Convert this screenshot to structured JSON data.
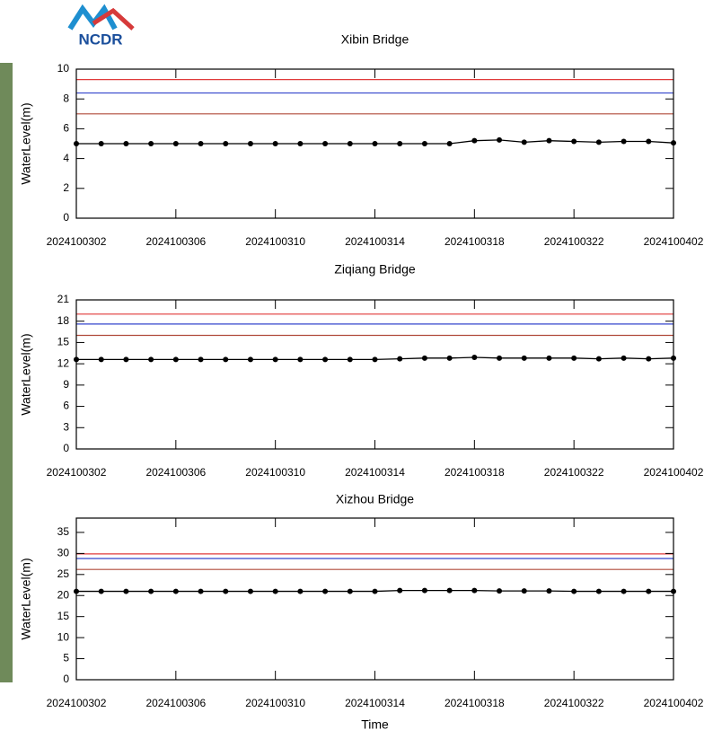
{
  "logo": "NCDR",
  "chart_data": [
    {
      "type": "line",
      "title": "Xibin Bridge",
      "y_label": "WaterLevel(m)",
      "categories": [
        "2024100302",
        null,
        null,
        null,
        "2024100306",
        null,
        null,
        null,
        "2024100310",
        null,
        null,
        null,
        "2024100314",
        null,
        null,
        null,
        "2024100318",
        null,
        null,
        null,
        "2024100322",
        null,
        null,
        null,
        "2024100402"
      ],
      "series": [
        {
          "color": "#000000",
          "values": [
            5.0,
            5.0,
            5.0,
            5.0,
            5.0,
            5.0,
            5.0,
            5.0,
            5.0,
            5.0,
            5.0,
            5.0,
            5.0,
            5.0,
            5.0,
            5.0,
            5.2,
            5.25,
            5.1,
            5.2,
            5.15,
            5.1,
            5.15,
            5.15,
            5.05
          ]
        }
      ],
      "reference_lines": [
        {
          "value": 9.3,
          "color": "#e03a3a"
        },
        {
          "value": 8.4,
          "color": "#3344cc"
        },
        {
          "value": 7.0,
          "color": "#b04a3a"
        }
      ],
      "ylim": [
        0,
        10
      ],
      "yticks": [
        0,
        2,
        4,
        6,
        8,
        10
      ]
    },
    {
      "type": "line",
      "title": "Ziqiang Bridge",
      "y_label": "WaterLevel(m)",
      "categories": [
        "2024100302",
        null,
        null,
        null,
        "2024100306",
        null,
        null,
        null,
        "2024100310",
        null,
        null,
        null,
        "2024100314",
        null,
        null,
        null,
        "2024100318",
        null,
        null,
        null,
        "2024100322",
        null,
        null,
        null,
        "2024100402"
      ],
      "series": [
        {
          "color": "#000000",
          "values": [
            12.6,
            12.6,
            12.6,
            12.6,
            12.6,
            12.6,
            12.6,
            12.6,
            12.6,
            12.6,
            12.6,
            12.6,
            12.6,
            12.7,
            12.8,
            12.8,
            12.9,
            12.8,
            12.8,
            12.8,
            12.8,
            12.7,
            12.8,
            12.7,
            12.8
          ]
        }
      ],
      "reference_lines": [
        {
          "value": 19.0,
          "color": "#e03a3a"
        },
        {
          "value": 17.6,
          "color": "#3344cc"
        },
        {
          "value": 16.0,
          "color": "#b04a3a"
        }
      ],
      "ylim": [
        0,
        21
      ],
      "yticks": [
        0,
        3,
        6,
        9,
        12,
        15,
        18,
        21
      ]
    },
    {
      "type": "line",
      "title": "Xizhou Bridge",
      "y_label": "WaterLevel(m)",
      "x_label": "Time",
      "categories": [
        "2024100302",
        null,
        null,
        null,
        "2024100306",
        null,
        null,
        null,
        "2024100310",
        null,
        null,
        null,
        "2024100314",
        null,
        null,
        null,
        "2024100318",
        null,
        null,
        null,
        "2024100322",
        null,
        null,
        null,
        "2024100402"
      ],
      "series": [
        {
          "color": "#000000",
          "values": [
            21.0,
            21.0,
            21.0,
            21.0,
            21.0,
            21.0,
            21.0,
            21.0,
            21.0,
            21.0,
            21.0,
            21.0,
            21.0,
            21.2,
            21.2,
            21.2,
            21.2,
            21.1,
            21.1,
            21.1,
            21.0,
            21.0,
            21.0,
            21.0,
            21.0
          ]
        }
      ],
      "reference_lines": [
        {
          "value": 29.9,
          "color": "#e03a3a"
        },
        {
          "value": 28.8,
          "color": "#3344cc"
        },
        {
          "value": 26.2,
          "color": "#b04a3a"
        }
      ],
      "ylim": [
        0,
        38.4
      ],
      "yticks": [
        0,
        5,
        10,
        15,
        20,
        25,
        30,
        35
      ]
    }
  ]
}
